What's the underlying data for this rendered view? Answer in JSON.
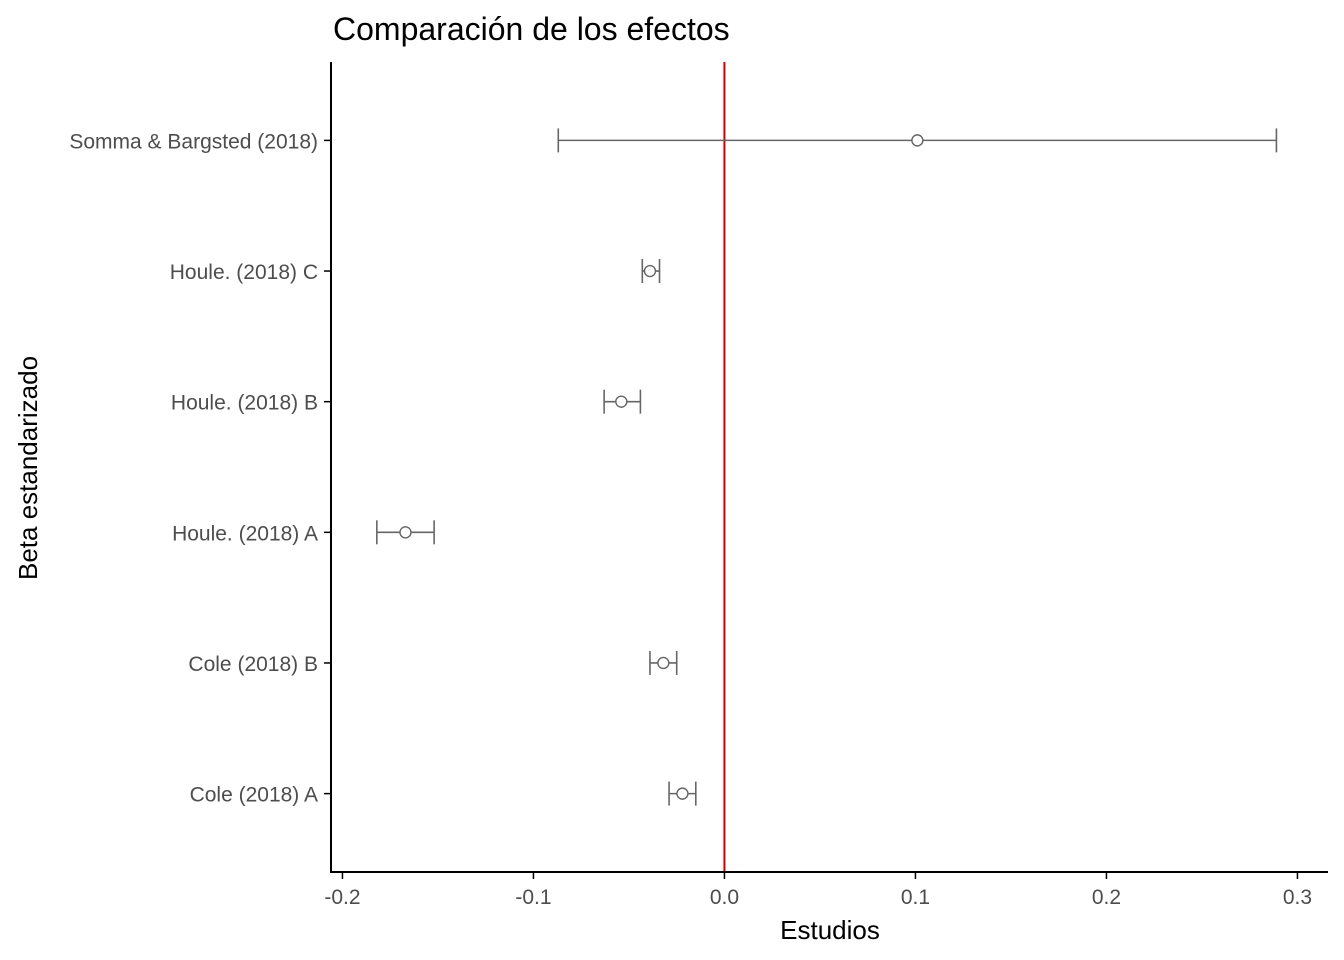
{
  "chart_data": {
    "type": "scatter",
    "title": "Comparación de los efectos",
    "xlabel": "Estudios",
    "ylabel": "Beta estandarizado",
    "xlim": [
      -0.206,
      0.316
    ],
    "x_ticks": [
      -0.2,
      -0.1,
      0.0,
      0.1,
      0.2,
      0.3
    ],
    "x_tick_labels": [
      "-0.2",
      "-0.1",
      "0.0",
      "0.1",
      "0.2",
      "0.3"
    ],
    "reference_line": {
      "x": 0.0,
      "color": "#cc0000"
    },
    "grid": false,
    "legend": "none",
    "categories": [
      "Cole (2018) A",
      "Cole (2018) B",
      "Houle. (2018) A",
      "Houle. (2018) B",
      "Houle. (2018) C",
      "Somma & Bargsted (2018)"
    ],
    "points": [
      {
        "label": "Cole (2018) A",
        "estimate": -0.022,
        "lower": -0.029,
        "upper": -0.015
      },
      {
        "label": "Cole (2018) B",
        "estimate": -0.032,
        "lower": -0.039,
        "upper": -0.025
      },
      {
        "label": "Houle. (2018) A",
        "estimate": -0.167,
        "lower": -0.182,
        "upper": -0.152
      },
      {
        "label": "Houle. (2018) B",
        "estimate": -0.054,
        "lower": -0.063,
        "upper": -0.044
      },
      {
        "label": "Houle. (2018) C",
        "estimate": -0.039,
        "lower": -0.043,
        "upper": -0.034
      },
      {
        "label": "Somma & Bargsted (2018)",
        "estimate": 0.101,
        "lower": -0.087,
        "upper": 0.289
      }
    ],
    "colors": {
      "errorbar": "#666666",
      "point_fill": "#ffffff",
      "point_stroke": "#666666",
      "axis": "#000000"
    }
  }
}
